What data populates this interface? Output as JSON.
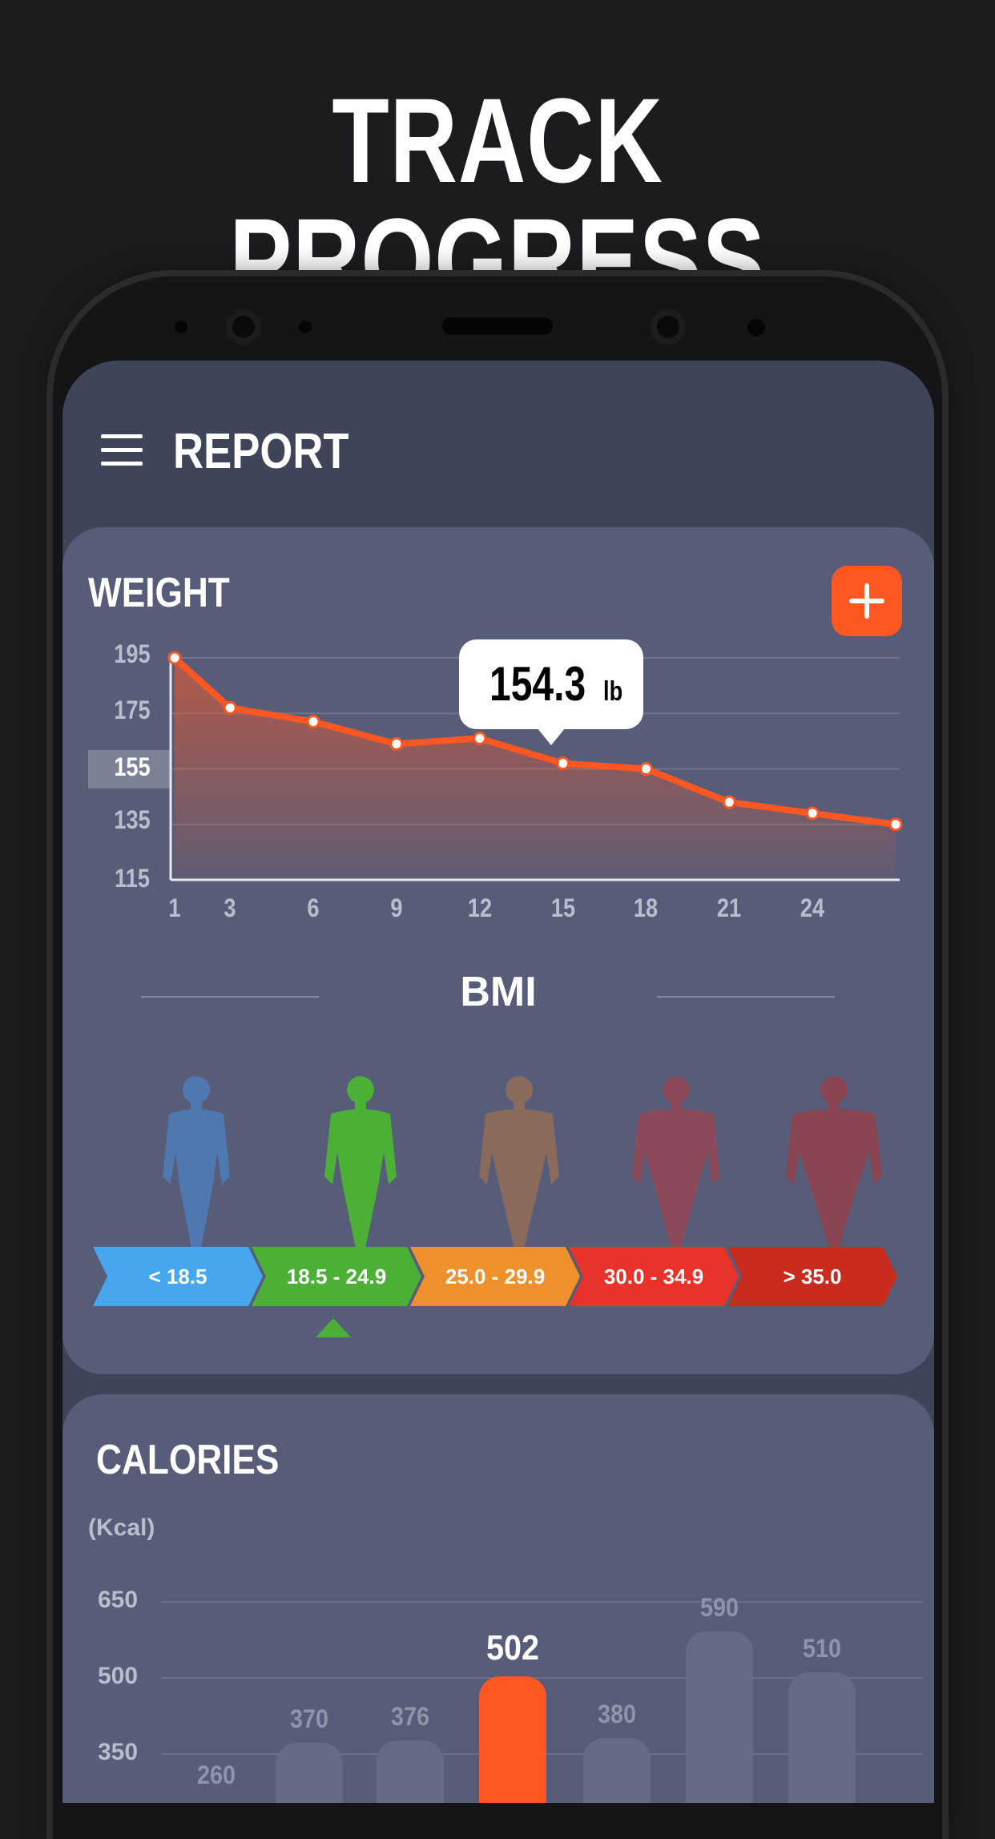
{
  "headline": "TRACK PROGRESS",
  "appbar": {
    "title": "REPORT"
  },
  "weight": {
    "title": "WEIGHT",
    "tooltip": {
      "value": "154.3",
      "unit": "lb"
    },
    "y_ticks": [
      "195",
      "175",
      "155",
      "135",
      "115"
    ],
    "active_y_tick": "155",
    "x_ticks": [
      "1",
      "3",
      "6",
      "9",
      "12",
      "15",
      "18",
      "21",
      "24"
    ]
  },
  "chart_data": {
    "type": "area",
    "title": "WEIGHT",
    "x": [
      1,
      3,
      6,
      9,
      12,
      15,
      18,
      21,
      24,
      27
    ],
    "values": [
      195,
      177,
      172,
      164,
      166,
      157,
      155,
      143,
      139,
      135
    ],
    "ylim": [
      115,
      195
    ],
    "grid": true,
    "colors": {
      "line": "#ff5722",
      "fill": "#ff5722"
    }
  },
  "bmi": {
    "title": "BMI",
    "ranges": [
      {
        "label": "< 18.5",
        "color": "#46a7ee",
        "figure_color": "#4f78b0"
      },
      {
        "label": "18.5 - 24.9",
        "color": "#4caf36",
        "figure_color": "#4caf36"
      },
      {
        "label": "25.0 - 29.9",
        "color": "#f0902c",
        "figure_color": "#8a6a5a"
      },
      {
        "label": "30.0 - 34.9",
        "color": "#e9332a",
        "figure_color": "#8a4a5a"
      },
      {
        "label": "> 35.0",
        "color": "#c92b1f",
        "figure_color": "#8a4553"
      }
    ],
    "selected_index": 1
  },
  "calories": {
    "title": "CALORIES",
    "unit": "(Kcal)",
    "y_ticks": [
      "650",
      "500",
      "350"
    ],
    "bars": [
      {
        "value": "260",
        "num": 260,
        "active": false
      },
      {
        "value": "370",
        "num": 370,
        "active": false
      },
      {
        "value": "376",
        "num": 376,
        "active": false
      },
      {
        "value": "502",
        "num": 502,
        "active": true
      },
      {
        "value": "380",
        "num": 380,
        "active": false
      },
      {
        "value": "590",
        "num": 590,
        "active": false
      },
      {
        "value": "510",
        "num": 510,
        "active": false
      }
    ]
  }
}
